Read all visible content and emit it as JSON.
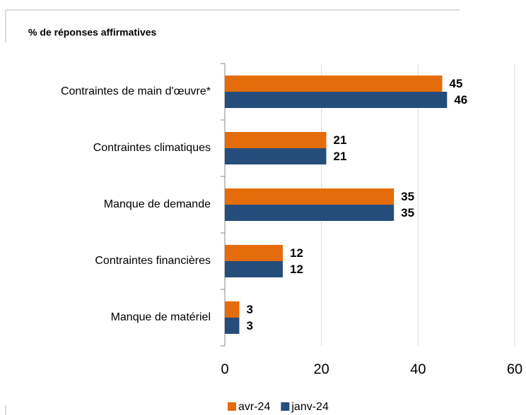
{
  "chart_data": {
    "type": "bar",
    "orientation": "horizontal",
    "subtitle": "% de réponses affirmatives",
    "categories": [
      "Contraintes de main d'œuvre*",
      "Contraintes climatiques",
      "Manque de demande",
      "Contraintes financières",
      "Manque de matériel"
    ],
    "series": [
      {
        "name": "avr-24",
        "color": "#e46c0a",
        "values": [
          45,
          21,
          35,
          12,
          3
        ]
      },
      {
        "name": "janv-24",
        "color": "#254d7c",
        "values": [
          46,
          21,
          35,
          12,
          3
        ]
      }
    ],
    "xlim": [
      0,
      60
    ],
    "xticks": [
      0,
      20,
      40,
      60
    ],
    "grid": true,
    "legend": "bottom"
  }
}
